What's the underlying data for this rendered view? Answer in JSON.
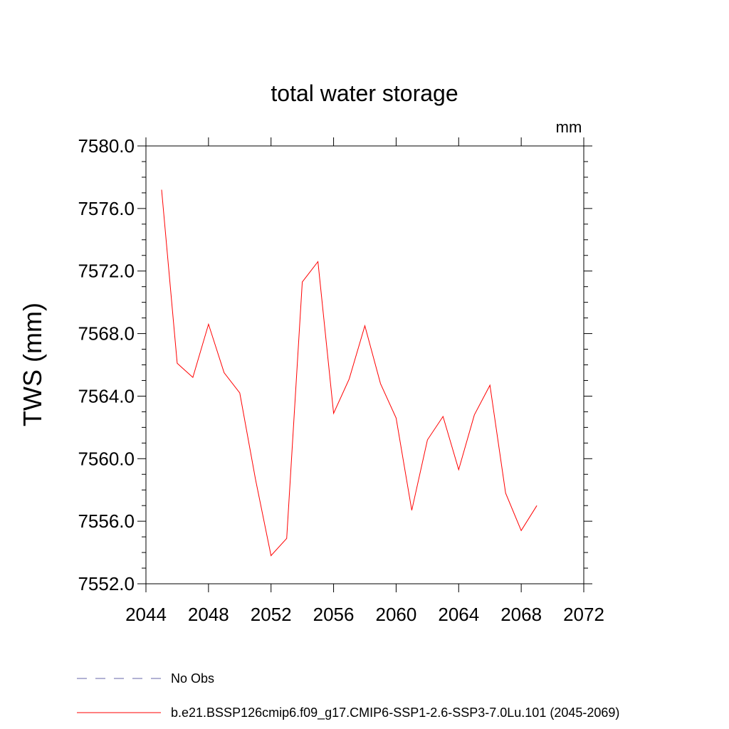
{
  "chart_data": {
    "type": "line",
    "title": "total water storage",
    "units_label": "mm",
    "ylabel": "TWS  (mm)",
    "xlabel": "",
    "xlim": [
      2044,
      2072
    ],
    "ylim": [
      7552.0,
      7580.0
    ],
    "x_ticks": [
      "2044",
      "2048",
      "2052",
      "2056",
      "2060",
      "2064",
      "2068",
      "2072"
    ],
    "y_ticks": [
      "7552.0",
      "7556.0",
      "7560.0",
      "7564.0",
      "7568.0",
      "7572.0",
      "7576.0",
      "7580.0"
    ],
    "grid": false,
    "legend_placement": "bottom",
    "series": [
      {
        "name": "No Obs",
        "color": "#6666aa",
        "style": "dashed",
        "x": [],
        "values": []
      },
      {
        "name": "b.e21.BSSP126cmip6.f09_g17.CMIP6-SSP1-2.6-SSP3-7.0Lu.101 (2045-2069)",
        "color": "#ff0000",
        "style": "solid",
        "x": [
          2045,
          2046,
          2047,
          2048,
          2049,
          2050,
          2051,
          2052,
          2053,
          2054,
          2055,
          2056,
          2057,
          2058,
          2059,
          2060,
          2061,
          2062,
          2063,
          2064,
          2065,
          2066,
          2067,
          2068,
          2069
        ],
        "values": [
          7577.2,
          7566.1,
          7565.2,
          7568.6,
          7565.5,
          7564.2,
          7558.7,
          7553.8,
          7554.9,
          7571.3,
          7572.6,
          7562.9,
          7565.1,
          7568.5,
          7564.8,
          7562.6,
          7556.7,
          7561.2,
          7562.7,
          7559.3,
          7562.8,
          7564.7,
          7557.8,
          7555.4,
          7557.0
        ]
      }
    ]
  }
}
